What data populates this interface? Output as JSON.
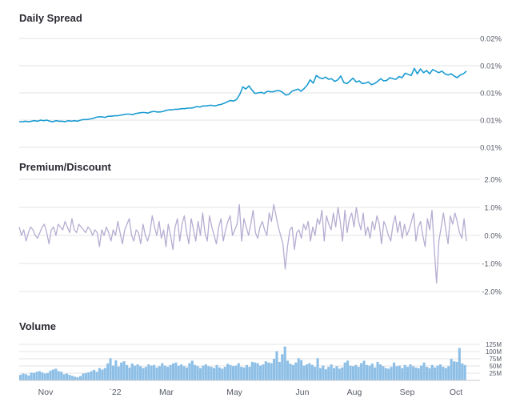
{
  "colors": {
    "spread_line": "#1a9bd1",
    "premium_line": "#b6acd1",
    "volume_bar": "#8dbfe6",
    "gridline": "#e3e3e6"
  },
  "chart_data": [
    {
      "type": "line",
      "title": "Daily Spread",
      "y_tick_labels": [
        "0.02%",
        "0.01%",
        "0.01%",
        "0.01%",
        "0.01%"
      ],
      "grid": true,
      "series": [
        {
          "values": [
            0.0047,
            0.0047,
            0.0048,
            0.0047,
            0.0048,
            0.0049,
            0.0048,
            0.005,
            0.0049,
            0.005,
            0.0048,
            0.0047,
            0.0049,
            0.0048,
            0.0048,
            0.0047,
            0.0049,
            0.0048,
            0.0049,
            0.0048,
            0.005,
            0.0051,
            0.0051,
            0.0052,
            0.0053,
            0.0055,
            0.0056,
            0.0056,
            0.0055,
            0.0057,
            0.0057,
            0.0058,
            0.0058,
            0.0059,
            0.006,
            0.0061,
            0.0061,
            0.006,
            0.0062,
            0.0063,
            0.0064,
            0.0064,
            0.0063,
            0.0065,
            0.0066,
            0.0065,
            0.0065,
            0.0066,
            0.0068,
            0.0069,
            0.0069,
            0.007,
            0.007,
            0.0071,
            0.0071,
            0.0072,
            0.0072,
            0.0073,
            0.0075,
            0.0074,
            0.0076,
            0.0076,
            0.0077,
            0.0077,
            0.0076,
            0.0078,
            0.0079,
            0.0081,
            0.0084,
            0.0086,
            0.0085,
            0.0088,
            0.0097,
            0.0111,
            0.0107,
            0.0113,
            0.0105,
            0.0099,
            0.01,
            0.0101,
            0.0099,
            0.0103,
            0.0102,
            0.0102,
            0.0104,
            0.0104,
            0.0101,
            0.0096,
            0.0097,
            0.0103,
            0.0105,
            0.0107,
            0.0103,
            0.0108,
            0.0114,
            0.0124,
            0.0118,
            0.0132,
            0.0128,
            0.0126,
            0.0129,
            0.0125,
            0.0126,
            0.0121,
            0.0124,
            0.0131,
            0.0119,
            0.0117,
            0.0122,
            0.0127,
            0.012,
            0.0122,
            0.0117,
            0.0118,
            0.012,
            0.0115,
            0.0117,
            0.0121,
            0.0126,
            0.0122,
            0.0123,
            0.0128,
            0.0126,
            0.0125,
            0.013,
            0.0128,
            0.0136,
            0.0134,
            0.0132,
            0.0145,
            0.0135,
            0.0144,
            0.0137,
            0.0141,
            0.0135,
            0.0143,
            0.014,
            0.0137,
            0.014,
            0.0135,
            0.0133,
            0.0135,
            0.0131,
            0.0128,
            0.0133,
            0.0135,
            0.014
          ]
        }
      ]
    },
    {
      "type": "line",
      "title": "Premium/Discount",
      "y_tick_labels": [
        "2.0%",
        "1.0%",
        "0.0%",
        "-1.0%",
        "-2.0%"
      ],
      "ylim": [
        -2.0,
        2.0
      ],
      "grid": true,
      "series": [
        {
          "values": [
            0.3,
            0.0,
            0.2,
            -0.2,
            0.1,
            0.3,
            0.2,
            0.0,
            -0.1,
            0.1,
            0.3,
            0.4,
            0.1,
            -0.3,
            0.2,
            0.3,
            0.0,
            0.4,
            0.3,
            0.2,
            0.5,
            0.3,
            0.1,
            0.6,
            0.2,
            0.1,
            0.4,
            0.3,
            0.2,
            0.1,
            0.3,
            0.2,
            0.0,
            0.2,
            0.1,
            -0.4,
            0.2,
            0.0,
            0.3,
            0.1,
            -0.2,
            0.2,
            0.0,
            0.5,
            0.1,
            -0.3,
            0.2,
            0.4,
            0.6,
            0.0,
            -0.2,
            0.2,
            0.1,
            -0.3,
            0.4,
            0.0,
            -0.2,
            0.1,
            0.7,
            0.3,
            0.0,
            0.5,
            -0.1,
            0.2,
            -0.4,
            0.4,
            0.0,
            -0.5,
            0.3,
            0.6,
            -0.2,
            0.4,
            0.7,
            0.1,
            -0.3,
            0.6,
            0.2,
            -0.2,
            0.5,
            0.0,
            0.8,
            0.1,
            -0.2,
            0.7,
            0.3,
            0.0,
            -0.3,
            0.3,
            0.6,
            -0.2,
            0.2,
            0.5,
            0.7,
            0.0,
            0.2,
            0.4,
            1.1,
            -0.2,
            0.6,
            0.3,
            0.0,
            0.4,
            0.9,
            0.1,
            -0.1,
            0.3,
            0.5,
            0.2,
            0.0,
            0.8,
            0.5,
            1.1,
            0.7,
            0.3,
            0.0,
            -0.3,
            -1.2,
            -0.4,
            0.2,
            0.3,
            -0.5,
            0.1,
            0.2,
            -0.1,
            0.4,
            0.2,
            0.5,
            -0.2,
            0.3,
            0.0,
            0.6,
            0.4,
            0.9,
            -0.2,
            0.7,
            0.4,
            0.2,
            0.8,
            0.3,
            1.0,
            0.5,
            -0.2,
            0.9,
            0.1,
            0.6,
            0.8,
            0.3,
            1.0,
            0.5,
            0.2,
            0.8,
            0.0,
            0.3,
            -0.1,
            0.5,
            0.2,
            0.7,
            0.4,
            -0.3,
            0.5,
            0.3,
            0.0,
            -0.2,
            0.4,
            0.7,
            0.1,
            0.5,
            -0.1,
            0.4,
            0.0,
            0.2,
            0.5,
            0.8,
            -0.2,
            0.3,
            0.5,
            0.0,
            -0.4,
            0.6,
            0.2,
            0.9,
            -0.5,
            -1.7,
            -0.2,
            0.3,
            0.8,
            0.2,
            -0.3,
            0.7,
            0.4,
            0.8,
            0.5,
            0.1,
            -0.1,
            0.6,
            -0.2
          ]
        }
      ]
    },
    {
      "type": "bar",
      "title": "Volume",
      "y_tick_labels": [
        "125M",
        "100M",
        "75M",
        "50M",
        "25M"
      ],
      "ylim": [
        0,
        130
      ],
      "grid": true,
      "x_tick_labels": [
        "Nov",
        "`22",
        "Mar",
        "May",
        "Jun",
        "Aug",
        "Sep",
        "Oct"
      ],
      "series": [
        {
          "values": [
            18,
            22,
            20,
            16,
            25,
            24,
            28,
            30,
            26,
            22,
            24,
            32,
            35,
            38,
            30,
            28,
            20,
            22,
            18,
            15,
            12,
            10,
            14,
            22,
            24,
            26,
            30,
            34,
            28,
            40,
            35,
            40,
            55,
            72,
            48,
            65,
            45,
            58,
            62,
            50,
            42,
            55,
            48,
            52,
            46,
            40,
            44,
            52,
            48,
            50,
            42,
            46,
            56,
            48,
            44,
            50,
            55,
            58,
            48,
            52,
            46,
            42,
            56,
            64,
            50,
            46,
            40,
            48,
            52,
            46,
            44,
            40,
            50,
            42,
            38,
            44,
            54,
            50,
            46,
            48,
            56,
            44,
            42,
            50,
            44,
            60,
            58,
            56,
            48,
            52,
            62,
            58,
            56,
            70,
            95,
            60,
            85,
            110,
            64,
            54,
            50,
            58,
            72,
            66,
            48,
            52,
            56,
            50,
            44,
            72,
            40,
            48,
            36,
            44,
            52,
            40,
            46,
            38,
            42,
            58,
            64,
            48,
            46,
            50,
            44,
            56,
            64,
            50,
            48,
            55,
            42,
            60,
            52,
            46,
            40,
            38,
            44,
            58,
            46,
            48,
            40,
            50,
            44,
            52,
            46,
            42,
            40,
            48,
            58,
            44,
            40,
            50,
            42,
            48,
            52,
            44,
            40,
            46,
            70,
            62,
            60,
            105,
            55,
            50
          ]
        }
      ]
    }
  ]
}
